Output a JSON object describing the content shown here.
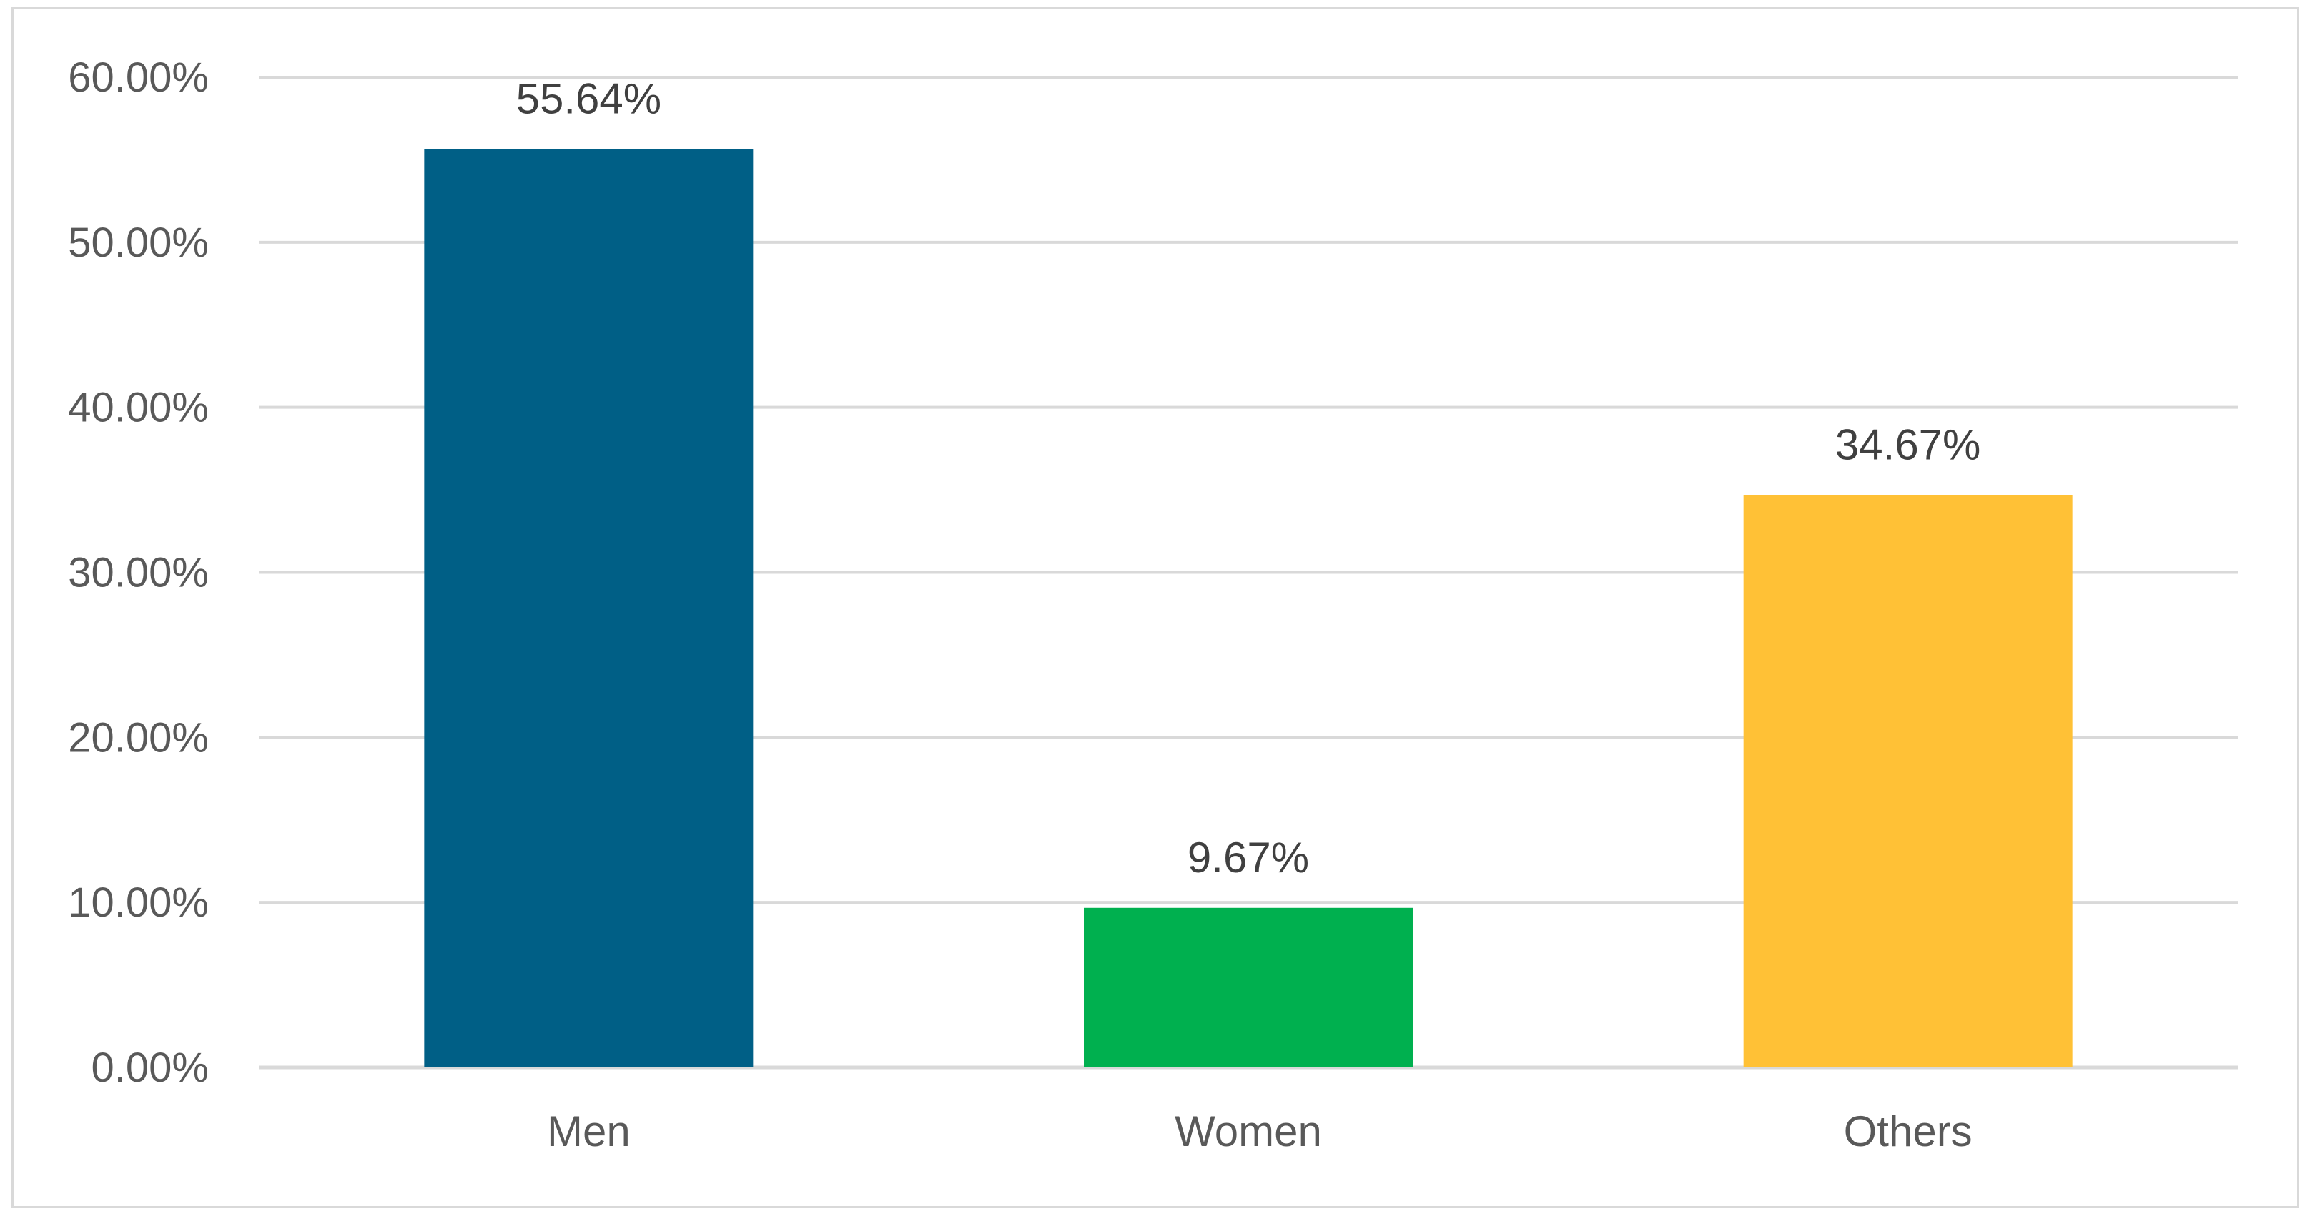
{
  "chart_data": {
    "type": "bar",
    "title": "",
    "xlabel": "",
    "ylabel": "",
    "categories": [
      "Men",
      "Women",
      "Others"
    ],
    "values": [
      55.64,
      9.67,
      34.67
    ],
    "data_labels": [
      "55.64%",
      "9.67%",
      "34.67%"
    ],
    "bar_colors": [
      "#005F86",
      "#00B04F",
      "#FFC136"
    ],
    "ylim": [
      0,
      60
    ],
    "yticks": [
      0,
      10,
      20,
      30,
      40,
      50,
      60
    ],
    "ytick_labels": [
      "0.00%",
      "10.00%",
      "20.00%",
      "30.00%",
      "40.00%",
      "50.00%",
      "60.00%"
    ],
    "grid": true,
    "legend": "none"
  }
}
